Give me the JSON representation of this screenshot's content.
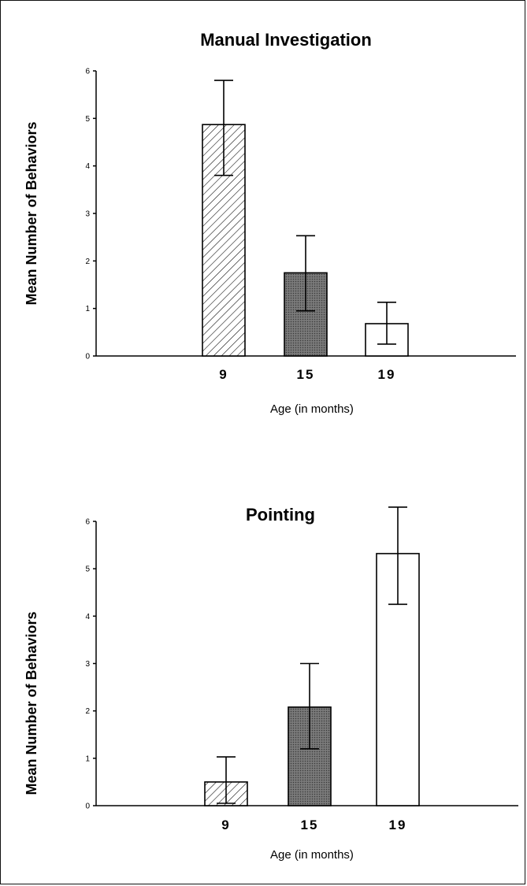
{
  "chart_data": [
    {
      "type": "bar",
      "title": "Manual Investigation",
      "xlabel": "Age (in months)",
      "ylabel": "Mean Number of Behaviors",
      "ylim": [
        0,
        6
      ],
      "yticks": [
        "0",
        "1",
        "2",
        "3",
        "4",
        "5",
        "6"
      ],
      "categories": [
        "9",
        "15",
        "19"
      ],
      "values": [
        4.87,
        1.75,
        0.68
      ],
      "error_low": [
        3.8,
        0.95,
        0.25
      ],
      "error_high": [
        5.8,
        2.53,
        1.13
      ],
      "fills": [
        "hatched",
        "dark-stipple",
        "white"
      ],
      "grid": false
    },
    {
      "type": "bar",
      "title": "Pointing",
      "xlabel": "Age (in months)",
      "ylabel": "Mean Number of Behaviors",
      "ylim": [
        0,
        6
      ],
      "yticks": [
        "0",
        "1",
        "2",
        "3",
        "4",
        "5",
        "6"
      ],
      "categories": [
        "9",
        "15",
        "19"
      ],
      "values": [
        0.5,
        2.08,
        5.32
      ],
      "error_low": [
        0.05,
        1.2,
        4.25
      ],
      "error_high": [
        1.03,
        3.0,
        6.3
      ],
      "fills": [
        "hatched",
        "dark-stipple",
        "white"
      ],
      "grid": false
    }
  ],
  "colors": {
    "ink": "#000000",
    "dark_fill": "#6f6f6f",
    "background": "#ffffff"
  }
}
